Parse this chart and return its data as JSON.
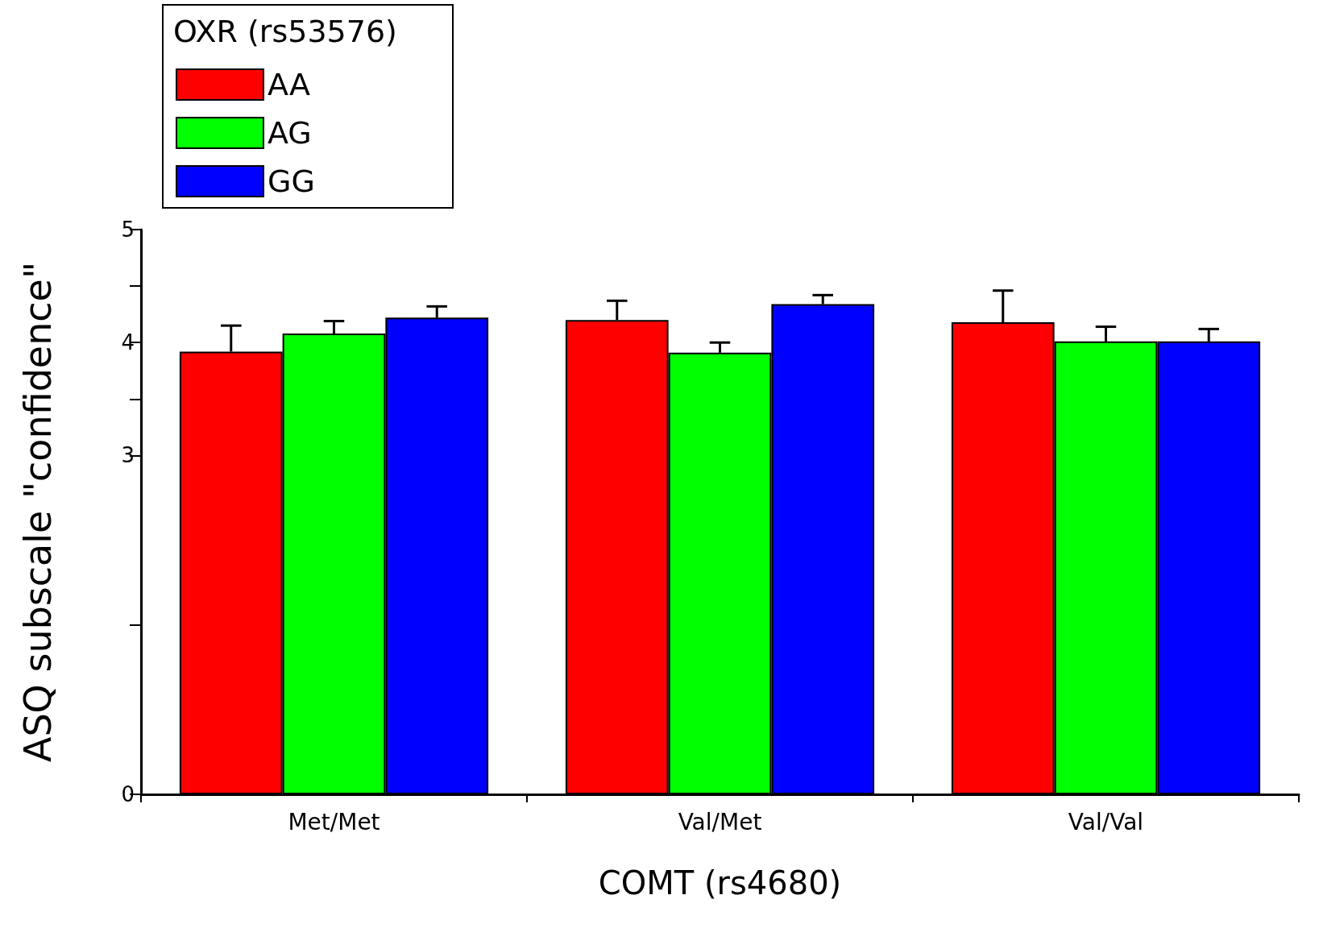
{
  "chart_data": {
    "type": "bar",
    "xlabel": "COMT (rs4680)",
    "ylabel": "ASQ subscale \"confidence\"",
    "legend_title": "OXR (rs53576)",
    "legend": "top left",
    "grid": false,
    "categories": [
      "Met/Met",
      "Val/Met",
      "Val/Val"
    ],
    "ylim": [
      0,
      5
    ],
    "yticks": [
      0,
      {
        "value": 1.5,
        "label": null
      },
      3,
      {
        "value": 3.5,
        "label": null
      },
      4,
      {
        "value": 4.5,
        "label": null
      },
      5
    ],
    "series": [
      {
        "name": "AA",
        "color": "#ff0000",
        "values": [
          3.92,
          4.2,
          4.18
        ],
        "errors": [
          [
            3.92,
            4.15
          ],
          [
            4.2,
            4.37
          ],
          [
            4.18,
            4.46
          ]
        ]
      },
      {
        "name": "AG",
        "color": "#00ff00",
        "values": [
          4.08,
          3.91,
          4.01
        ],
        "errors": [
          [
            4.08,
            4.19
          ],
          [
            3.91,
            4.0
          ],
          [
            4.01,
            4.14
          ]
        ]
      },
      {
        "name": "GG",
        "color": "#0000ff",
        "values": [
          4.22,
          4.34,
          4.01
        ],
        "errors": [
          [
            4.22,
            4.32
          ],
          [
            4.34,
            4.42
          ],
          [
            4.01,
            4.12
          ]
        ]
      }
    ]
  }
}
